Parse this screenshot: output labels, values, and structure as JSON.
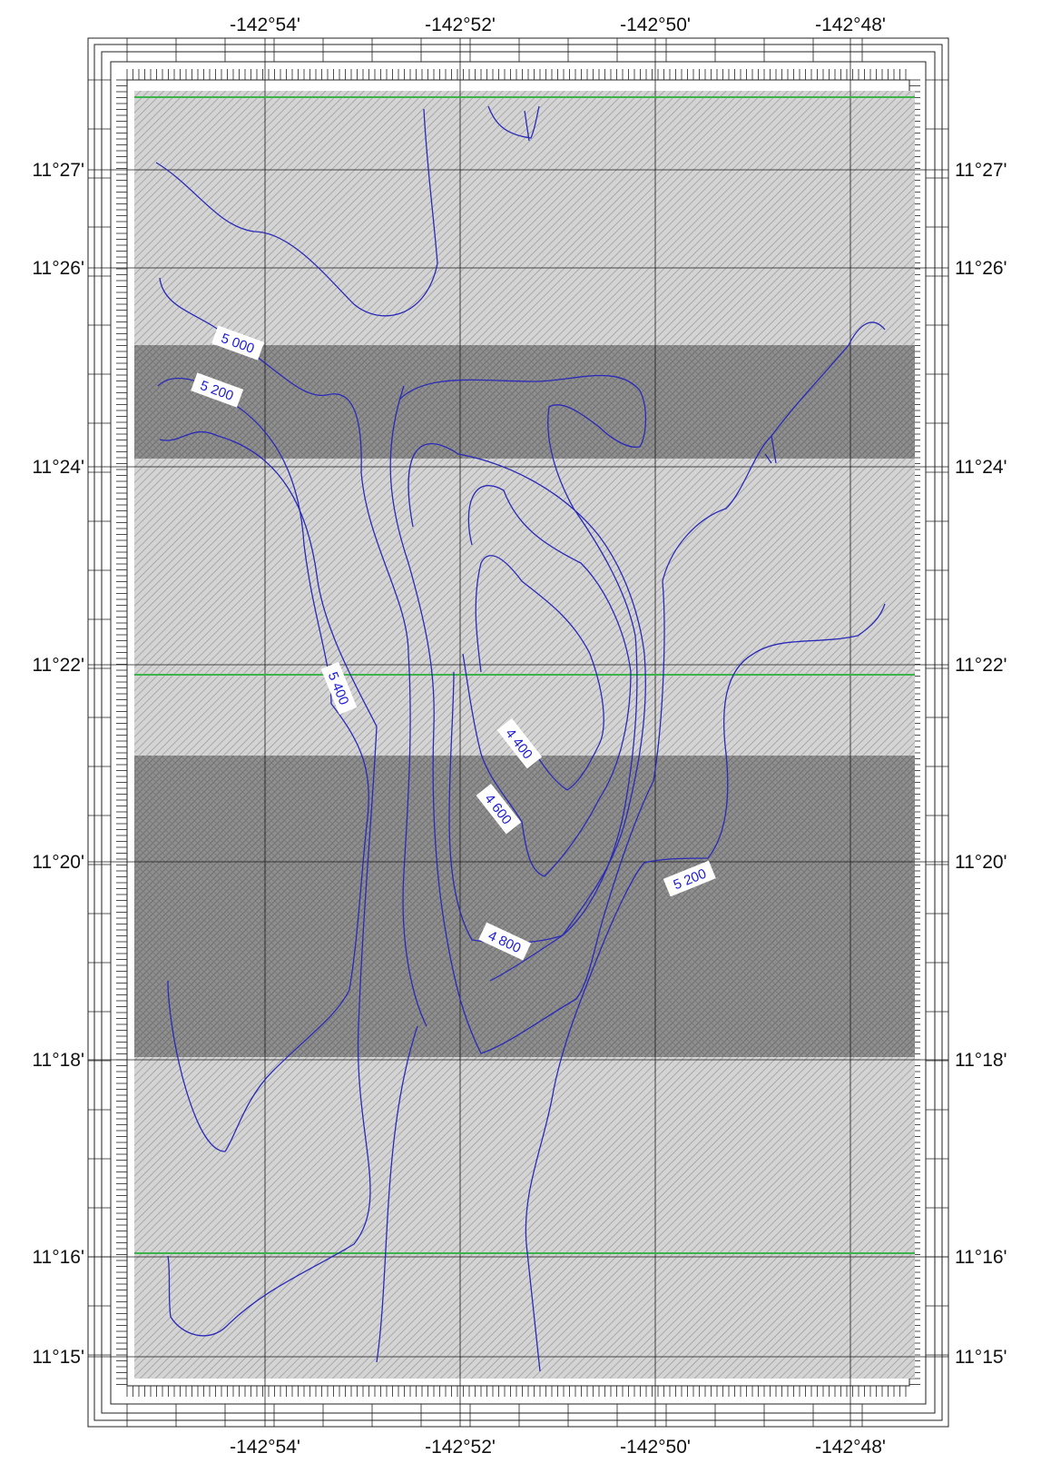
{
  "map": {
    "top_lon_labels": [
      "-142°54'",
      "-142°52'",
      "-142°50'",
      "-142°48'"
    ],
    "bottom_lon_labels": [
      "-142°54'",
      "-142°52'",
      "-142°50'",
      "-142°48'"
    ],
    "left_lat_labels": [
      "11°27'",
      "11°26'",
      "11°24'",
      "11°22'",
      "11°20'",
      "11°18'",
      "11°16'",
      "11°15'"
    ],
    "right_lat_labels": [
      "11°27'",
      "11°26'",
      "11°24'",
      "11°22'",
      "11°20'",
      "11°18'",
      "11°16'",
      "11°15'"
    ],
    "contour_labels": [
      "5 000",
      "5 200",
      "5 400",
      "4 400",
      "4 600",
      "4 800",
      "5 200"
    ],
    "colors": {
      "contour": "#2a2ab8",
      "contour_label": "#1a1ad6",
      "track_line": "#3cb44b",
      "grid": "#1a1a1a",
      "light_band": "#cdcdcd",
      "dark_band": "#8a8a8a"
    }
  }
}
